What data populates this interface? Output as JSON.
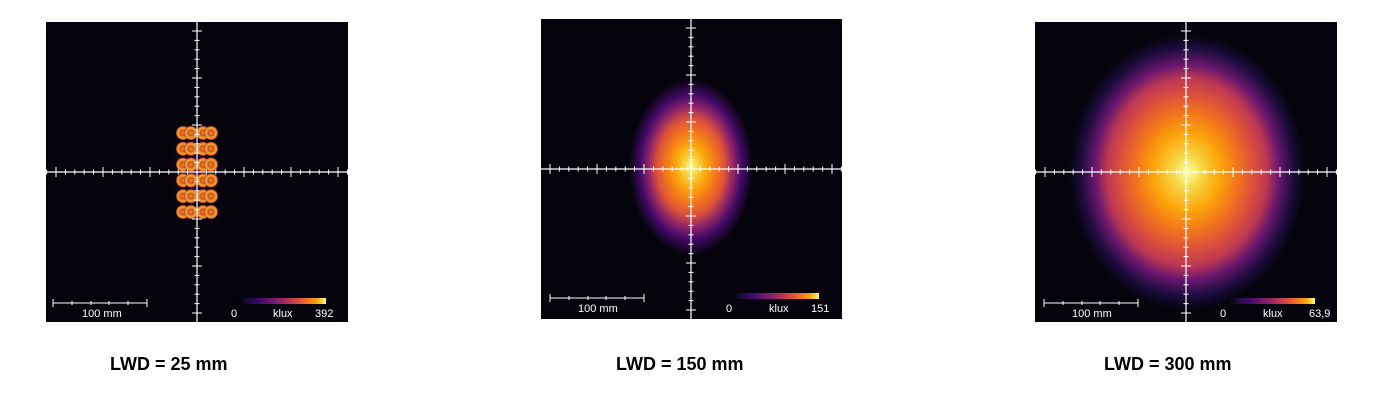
{
  "panels": [
    {
      "scale_label": "100 mm",
      "colorbar": {
        "min": "0",
        "unit": "klux",
        "max": "392"
      },
      "caption": "LWD = 25 mm"
    },
    {
      "scale_label": "100 mm",
      "colorbar": {
        "min": "0",
        "unit": "klux",
        "max": "151"
      },
      "caption": "LWD = 150 mm"
    },
    {
      "scale_label": "100 mm",
      "colorbar": {
        "min": "0",
        "unit": "klux",
        "max": "63,9"
      },
      "caption": "LWD = 300 mm"
    }
  ],
  "colors": {
    "background": "#05040c",
    "axis": "#ffffff",
    "colormap": "inferno"
  }
}
